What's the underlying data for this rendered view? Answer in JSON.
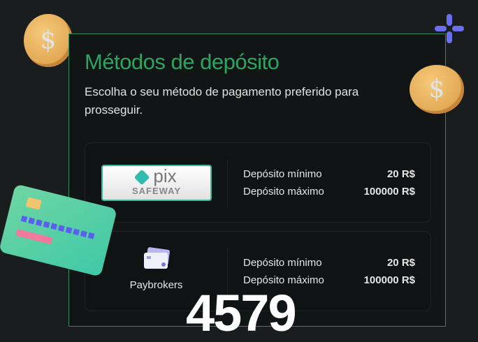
{
  "title": "Métodos de depósito",
  "subtitle": "Escolha o seu método de pagamento preferido para prosseguir.",
  "methods": [
    {
      "name": "Pix Safeway",
      "logo_text": "pix",
      "logo_sub": "SAFEWAY",
      "min_label": "Depósito mínimo",
      "min_value": "20 R$",
      "max_label": "Depósito máximo",
      "max_value": "100000 R$"
    },
    {
      "name": "Paybrokers",
      "min_label": "Depósito mínimo",
      "min_value": "20 R$",
      "max_label": "Depósito máximo",
      "max_value": "100000 R$"
    }
  ],
  "overlay_number": "4579",
  "colors": {
    "accent": "#2ea463",
    "border": "#2f8a5c",
    "background": "#1a1d1e"
  }
}
